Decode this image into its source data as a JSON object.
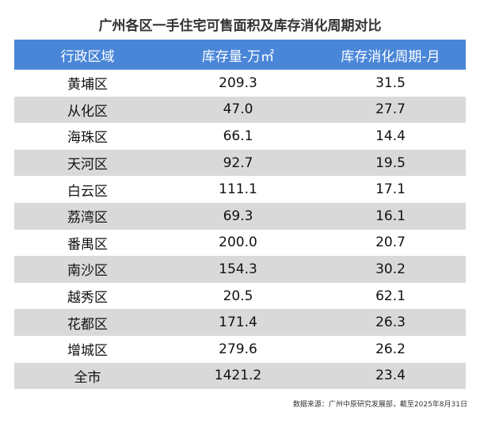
{
  "title": "广州各区一手住宅可售面积及库存消化周期对比",
  "table": {
    "header": [
      "行政区域",
      "库存量-万㎡",
      "库存消化周期-月"
    ],
    "rows": [
      [
        "黄埔区",
        "209.3",
        "31.5"
      ],
      [
        "从化区",
        "47.0",
        "27.7"
      ],
      [
        "海珠区",
        "66.1",
        "14.4"
      ],
      [
        "天河区",
        "92.7",
        "19.5"
      ],
      [
        "白云区",
        "111.1",
        "17.1"
      ],
      [
        "荔湾区",
        "69.3",
        "16.1"
      ],
      [
        "番禺区",
        "200.0",
        "20.7"
      ],
      [
        "南沙区",
        "154.3",
        "30.2"
      ],
      [
        "越秀区",
        "20.5",
        "62.1"
      ],
      [
        "花都区",
        "171.4",
        "26.3"
      ],
      [
        "增城区",
        "279.6",
        "26.2"
      ],
      [
        "全市",
        "1421.2",
        "23.4"
      ]
    ]
  },
  "source": "数据来源：广州中原研究发展部，截至2025年8月31日"
}
